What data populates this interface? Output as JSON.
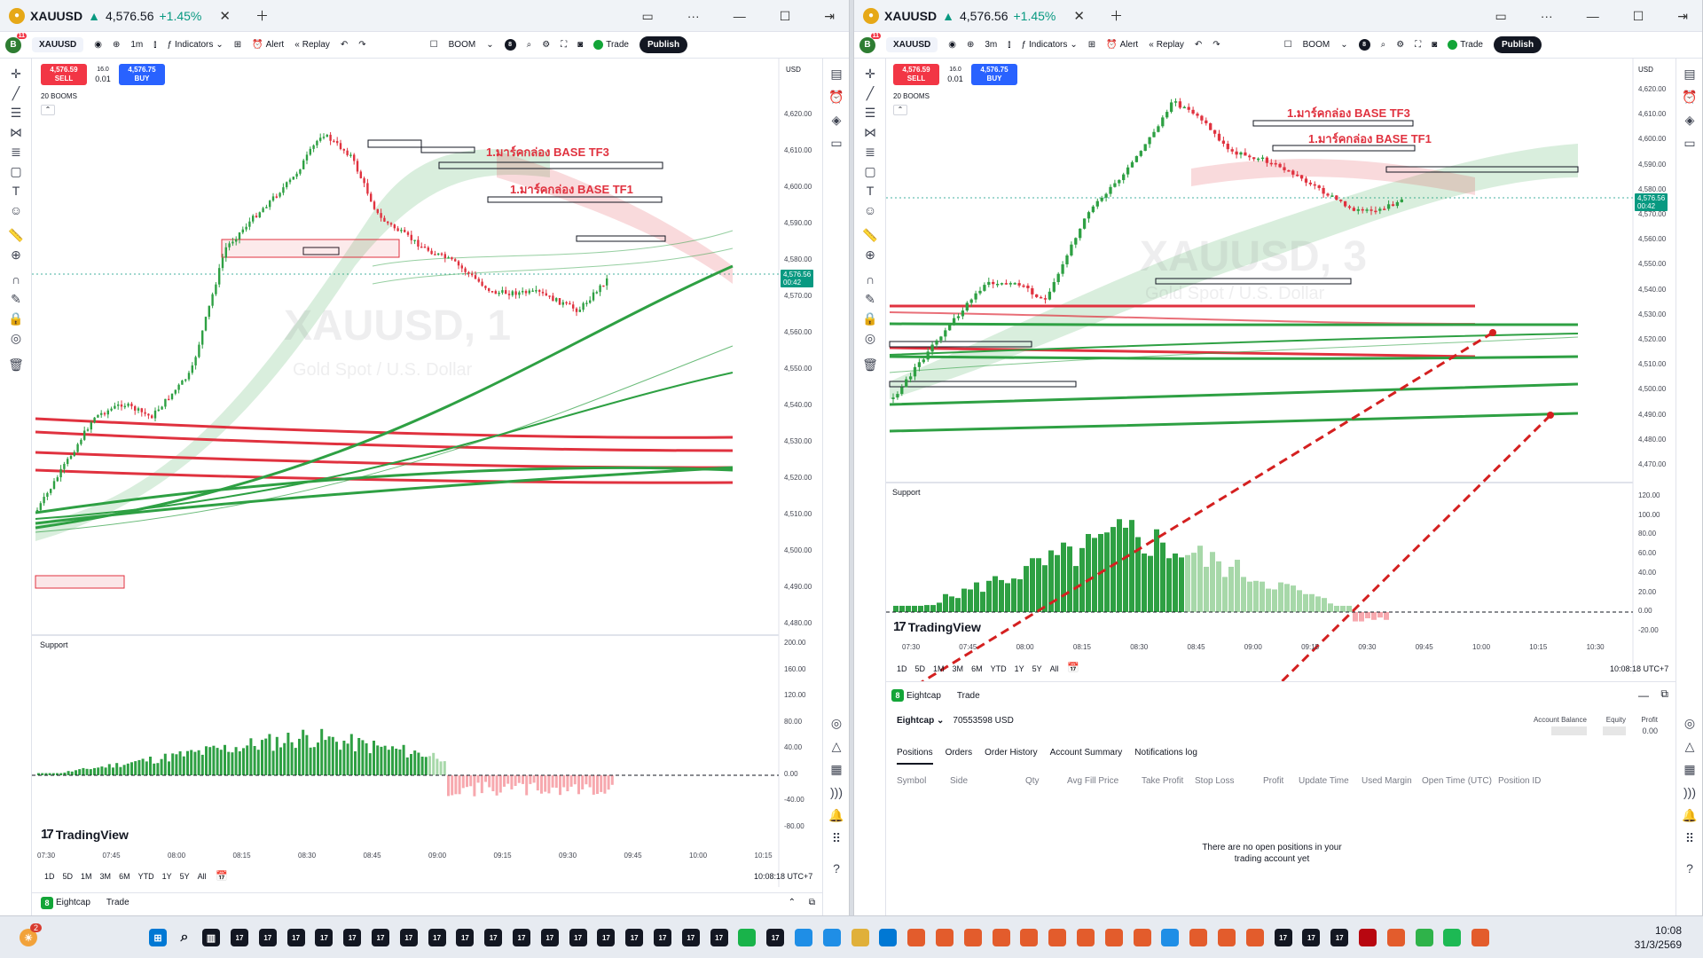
{
  "windows": [
    {
      "id": "left",
      "title": {
        "symbol": "XAUUSD",
        "arrow": "▲",
        "price": "4,576.56",
        "change": "+1.45%"
      },
      "toolbar": {
        "avatar": "B",
        "avatar_badge": "11",
        "symbol": "XAUUSD",
        "interval": "1m",
        "indicators": "Indicators",
        "alert": "Alert",
        "replay": "Replay",
        "boom": "BOOM",
        "boom_count": "8",
        "trade": "Trade",
        "publish": "Publish"
      },
      "trade_widget": {
        "sell_price": "4,576.59",
        "sell_label": "SELL",
        "spread": "16.0",
        "lot": "0.01",
        "buy_price": "4,576.75",
        "buy_label": "BUY"
      },
      "booms_label": "20 BOOMS",
      "currency": "USD",
      "price_axis": [
        "4,620.00",
        "4,610.00",
        "4,600.00",
        "4,590.00",
        "4,580.00",
        "4,570.00",
        "4,560.00",
        "4,550.00",
        "4,540.00",
        "4,530.00",
        "4,520.00",
        "4,510.00",
        "4,500.00",
        "4,490.00",
        "4,480.00"
      ],
      "last_price_tag": {
        "price": "4,576.56",
        "countdown": "00:42"
      },
      "watermark": {
        "line1": "XAUUSD, 1",
        "line2": "Gold Spot / U.S. Dollar"
      },
      "annotations": [
        "1.มาร์คกล่อง BASE TF3",
        "1.มาร์คกล่อง BASE TF1"
      ],
      "indicator_label": "Support",
      "indicator_axis": [
        "200.00",
        "160.00",
        "120.00",
        "80.00",
        "40.00",
        "0.00",
        "-40.00",
        "-80.00"
      ],
      "time_axis": [
        "07:30",
        "07:45",
        "08:00",
        "08:15",
        "08:30",
        "08:45",
        "09:00",
        "09:15",
        "09:30",
        "09:45",
        "10:00",
        "10:15"
      ],
      "tv_logo": "TradingView",
      "ranges": [
        "1D",
        "5D",
        "1M",
        "3M",
        "6M",
        "YTD",
        "1Y",
        "5Y",
        "All"
      ],
      "clock": "10:08:18 UTC+7",
      "bottom": {
        "broker": "Eightcap",
        "trade": "Trade"
      }
    },
    {
      "id": "right",
      "title": {
        "symbol": "XAUUSD",
        "arrow": "▲",
        "price": "4,576.56",
        "change": "+1.45%"
      },
      "toolbar": {
        "avatar": "B",
        "avatar_badge": "11",
        "symbol": "XAUUSD",
        "interval": "3m",
        "indicators": "Indicators",
        "alert": "Alert",
        "replay": "Replay",
        "boom": "BOOM",
        "boom_count": "8",
        "trade": "Trade",
        "publish": "Publish"
      },
      "trade_widget": {
        "sell_price": "4,576.59",
        "sell_label": "SELL",
        "spread": "16.0",
        "lot": "0.01",
        "buy_price": "4,576.75",
        "buy_label": "BUY"
      },
      "booms_label": "20 BOOMS",
      "currency": "USD",
      "price_axis": [
        "4,620.00",
        "4,610.00",
        "4,600.00",
        "4,590.00",
        "4,580.00",
        "4,570.00",
        "4,560.00",
        "4,550.00",
        "4,540.00",
        "4,530.00",
        "4,520.00",
        "4,510.00",
        "4,500.00",
        "4,490.00",
        "4,480.00",
        "4,470.00"
      ],
      "last_price_tag": {
        "price": "4,576.56",
        "countdown": "00:42"
      },
      "watermark": {
        "line1": "XAUUSD, 3",
        "line2": "Gold Spot / U.S. Dollar"
      },
      "annotations": [
        "1.มาร์คกล่อง BASE TF3",
        "1.มาร์คกล่อง BASE TF1"
      ],
      "indicator_label": "Support",
      "indicator_axis": [
        "120.00",
        "100.00",
        "80.00",
        "60.00",
        "40.00",
        "20.00",
        "0.00",
        "-20.00"
      ],
      "time_axis": [
        "07:30",
        "07:45",
        "08:00",
        "08:15",
        "08:30",
        "08:45",
        "09:00",
        "09:15",
        "09:30",
        "09:45",
        "10:00",
        "10:15",
        "10:30"
      ],
      "tv_logo": "TradingView",
      "ranges": [
        "1D",
        "5D",
        "1M",
        "3M",
        "6M",
        "YTD",
        "1Y",
        "5Y",
        "All"
      ],
      "clock": "10:08:18 UTC+7",
      "account": {
        "broker": "Eightcap",
        "trade": "Trade",
        "account_id": "70553598 USD",
        "balance_label": "Account Balance",
        "equity_label": "Equity",
        "profit_label": "Profit",
        "profit_value": "0.00",
        "tabs": [
          "Positions",
          "Orders",
          "Order History",
          "Account Summary",
          "Notifications log"
        ],
        "columns": [
          "Symbol",
          "Side",
          "Qty",
          "Avg Fill Price",
          "Take Profit",
          "Stop Loss",
          "Profit",
          "Update Time",
          "Used Margin",
          "Open Time (UTC)",
          "Position ID"
        ],
        "empty_message": "There are no open positions in your trading account yet"
      }
    }
  ],
  "taskbar": {
    "time": "10:08",
    "date": "31/3/2569",
    "notification_badge": "2"
  },
  "colors": {
    "up": "#2ea043",
    "down": "#e0323f",
    "accent": "#2962ff",
    "tag": "#089981"
  }
}
